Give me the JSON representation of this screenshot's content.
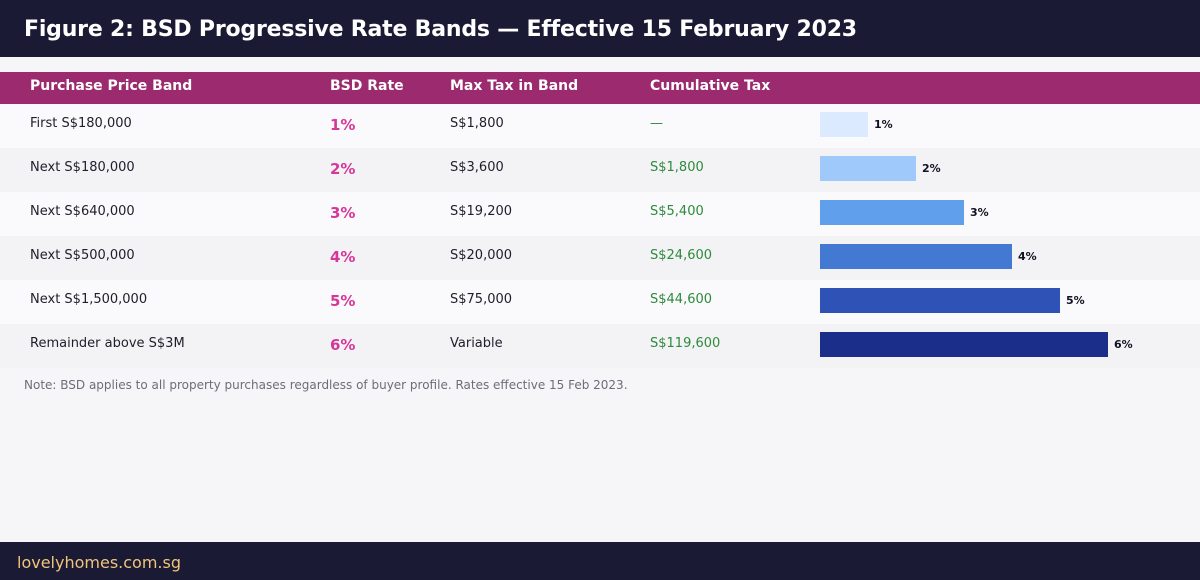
{
  "title": "Figure 2: BSD Progressive Rate Bands — Effective 15 February 2023",
  "columns": {
    "band": "Purchase Price Band",
    "rate": "BSD Rate",
    "max_tax": "Max Tax in Band",
    "cumulative": "Cumulative Tax"
  },
  "rows": [
    {
      "band": "First S$180,000",
      "rate": "1%",
      "max_tax": "S$1,800",
      "cumulative": "—"
    },
    {
      "band": "Next S$180,000",
      "rate": "2%",
      "max_tax": "S$3,600",
      "cumulative": "S$1,800"
    },
    {
      "band": "Next S$640,000",
      "rate": "3%",
      "max_tax": "S$19,200",
      "cumulative": "S$5,400"
    },
    {
      "band": "Next S$500,000",
      "rate": "4%",
      "max_tax": "S$20,000",
      "cumulative": "S$24,600"
    },
    {
      "band": "Next S$1,500,000",
      "rate": "5%",
      "max_tax": "S$75,000",
      "cumulative": "S$44,600"
    },
    {
      "band": "Remainder above S$3M",
      "rate": "6%",
      "max_tax": "Variable",
      "cumulative": "S$119,600"
    }
  ],
  "chart_data": {
    "type": "bar",
    "orientation": "horizontal",
    "categories": [
      "First S$180,000",
      "Next S$180,000",
      "Next S$640,000",
      "Next S$500,000",
      "Next S$1,500,000",
      "Remainder above S$3M"
    ],
    "values": [
      1,
      2,
      3,
      4,
      5,
      6
    ],
    "value_labels": [
      "1%",
      "2%",
      "3%",
      "4%",
      "5%",
      "6%"
    ],
    "bar_colors": [
      "#dbeafe",
      "#9fc9fb",
      "#5f9fec",
      "#4479d3",
      "#2e52b5",
      "#1b2f8a"
    ],
    "xlim": [
      0,
      7.5
    ],
    "grid": false
  },
  "note": "Note: BSD applies to all property purchases regardless of buyer profile. Rates effective 15 Feb 2023.",
  "footer": "lovelyhomes.com.sg",
  "colors": {
    "dark_bar": "#1b1a34",
    "header": "#9b2b6e",
    "rate_accent": "#d6389a",
    "cumulative_green": "#2e8a3c",
    "footer_text": "#f0c47a"
  }
}
